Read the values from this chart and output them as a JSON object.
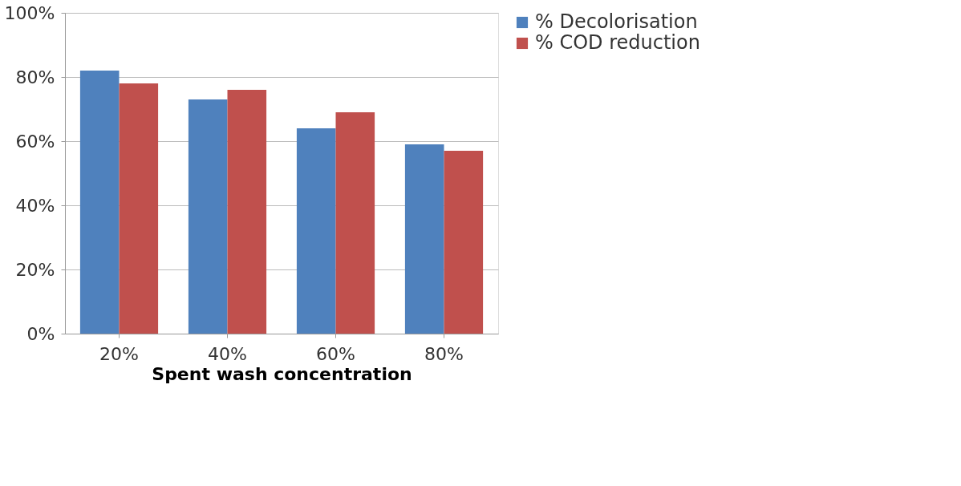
{
  "chart_data": {
    "type": "bar",
    "xlabel": "Spent wash concentration",
    "categories": [
      "20%",
      "40%",
      "60%",
      "80%"
    ],
    "series": [
      {
        "name": "% Decolorisation",
        "color": "#4f81bd",
        "values": [
          82,
          73,
          64,
          59
        ]
      },
      {
        "name": "% COD reduction",
        "color": "#c0504d",
        "values": [
          78,
          76,
          69,
          57
        ]
      }
    ],
    "ylim": [
      0,
      100
    ],
    "yticks": [
      {
        "value": 0,
        "label": "0%"
      },
      {
        "value": 20,
        "label": "20%"
      },
      {
        "value": 40,
        "label": "40%"
      },
      {
        "value": 60,
        "label": "60%"
      },
      {
        "value": 80,
        "label": "80%"
      },
      {
        "value": 100,
        "label": "100%"
      }
    ],
    "grid": "y",
    "legend": "right"
  }
}
